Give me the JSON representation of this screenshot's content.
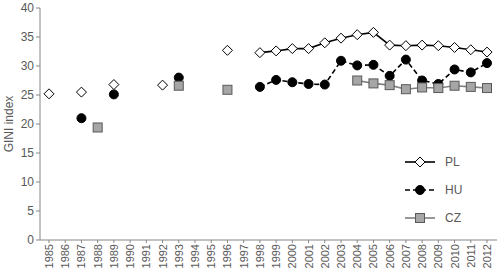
{
  "chart_data": {
    "type": "line",
    "y_label": "GINI index",
    "categories": [
      "1985",
      "1986",
      "1987",
      "1988",
      "1989",
      "1990",
      "1991",
      "1992",
      "1993",
      "1994",
      "1995",
      "1996",
      "1997",
      "1998",
      "1999",
      "2000",
      "2001",
      "2002",
      "2003",
      "2004",
      "2005",
      "2006",
      "2007",
      "2008",
      "2009",
      "2010",
      "2011",
      "2012"
    ],
    "series": [
      {
        "name": "PL",
        "color": "#000000",
        "marker": "diamond",
        "line_style": "solid",
        "values": [
          25.2,
          null,
          25.5,
          null,
          26.8,
          null,
          null,
          26.7,
          null,
          null,
          null,
          32.7,
          null,
          32.3,
          32.6,
          33.0,
          33.0,
          34.0,
          34.8,
          35.4,
          35.8,
          33.6,
          33.5,
          33.6,
          33.5,
          33.2,
          32.8,
          32.4
        ]
      },
      {
        "name": "HU",
        "color": "#000000",
        "marker": "circle",
        "line_style": "dashed",
        "values": [
          null,
          null,
          21.0,
          null,
          25.1,
          null,
          null,
          null,
          28.0,
          null,
          null,
          null,
          null,
          26.4,
          27.6,
          27.2,
          26.9,
          26.8,
          30.9,
          30.1,
          30.2,
          28.3,
          31.1,
          27.5,
          26.9,
          29.4,
          28.9,
          30.5
        ]
      },
      {
        "name": "CZ",
        "color": "#808080",
        "marker": "square",
        "line_style": "solid",
        "values": [
          null,
          null,
          null,
          19.4,
          null,
          null,
          null,
          null,
          26.6,
          null,
          null,
          25.9,
          null,
          null,
          null,
          null,
          null,
          null,
          null,
          27.5,
          27.0,
          26.7,
          26.0,
          26.3,
          26.2,
          26.6,
          26.4,
          26.2
        ]
      }
    ],
    "ylim": [
      0,
      40
    ],
    "yticks": [
      0,
      5,
      10,
      15,
      20,
      25,
      30,
      35,
      40
    ],
    "grid": false,
    "legend": "right"
  }
}
